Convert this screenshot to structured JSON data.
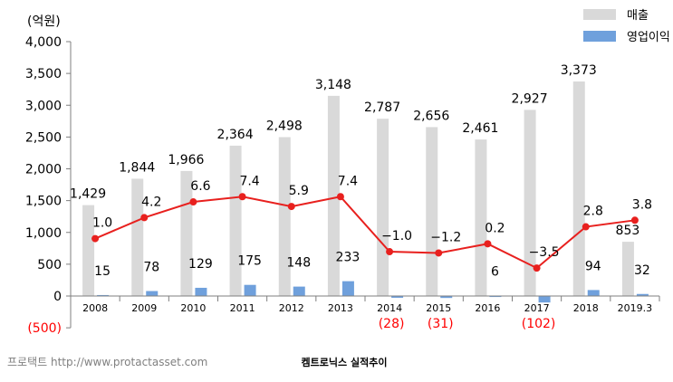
{
  "chart_data": {
    "type": "bar",
    "unit_label": "(억원)",
    "categories": [
      "2008",
      "2009",
      "2010",
      "2011",
      "2012",
      "2013",
      "2014",
      "2015",
      "2016",
      "2017",
      "2018",
      "2019.3"
    ],
    "ylim": [
      -500,
      4000
    ],
    "y_ticks": [
      4000,
      3500,
      3000,
      2500,
      2000,
      1500,
      1000,
      500,
      0,
      -500
    ],
    "y_tick_labels": [
      "4,000",
      "3,500",
      "3,000",
      "2,500",
      "2,000",
      "1,500",
      "1,000",
      "500",
      "0",
      "(500)"
    ],
    "series": [
      {
        "name": "매출",
        "type": "bar",
        "color": "#d9d9d9",
        "values": [
          1429,
          1844,
          1966,
          2364,
          2498,
          3148,
          2787,
          2656,
          2461,
          2927,
          3373,
          853
        ],
        "labels": [
          "1,429",
          "1,844",
          "1,966",
          "2,364",
          "2,498",
          "3,148",
          "2,787",
          "2,656",
          "2,461",
          "2,927",
          "3,373",
          "853"
        ]
      },
      {
        "name": "영업이익",
        "type": "bar",
        "color": "#6fa0dc",
        "values": [
          15,
          78,
          129,
          175,
          148,
          233,
          -28,
          -31,
          6,
          -102,
          94,
          32
        ],
        "labels": [
          "15",
          "78",
          "129",
          "175",
          "148",
          "233",
          "(28)",
          "(31)",
          "6",
          "(102)",
          "94",
          "32"
        ]
      },
      {
        "type": "line",
        "color": "#e8201e",
        "values": [
          1.0,
          4.2,
          6.6,
          7.4,
          5.9,
          7.4,
          -1.0,
          -1.2,
          0.2,
          -3.5,
          2.8,
          3.8
        ],
        "labels": [
          "1.0",
          "4.2",
          "6.6",
          "7.4",
          "5.9",
          "7.4",
          "−1.0",
          "−1.2",
          "0.2",
          "−3.5",
          "2.8",
          "3.8"
        ]
      }
    ],
    "legend_position": "top-right",
    "negative_label_color": "#ff0000",
    "grid": false
  },
  "footer": {
    "source": "프로택트 http://www.protactasset.com",
    "caption": "켐트로닉스 실적추이"
  }
}
